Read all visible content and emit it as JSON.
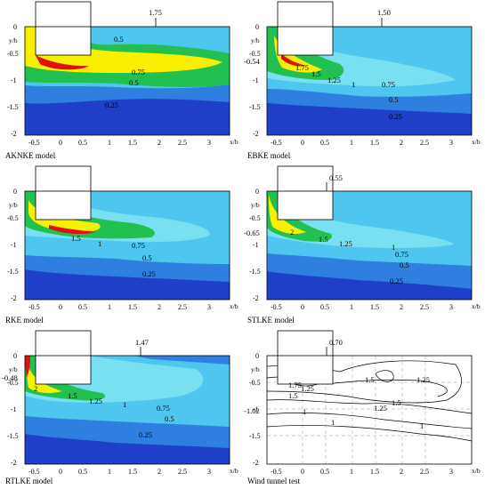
{
  "panels": [
    {
      "caption": "AKNKE model",
      "peak": "1.75",
      "contours": [
        "0.5",
        "0.75",
        "0.5",
        "0.25"
      ],
      "side_value": ""
    },
    {
      "caption": "EBKE model",
      "peak": "1.50",
      "contours": [
        "1.75",
        "1.5",
        "1.25",
        "1",
        "0.75",
        "0.5",
        "0.25"
      ],
      "side_value": "-0.54"
    },
    {
      "caption": "RKE model",
      "peak": "",
      "contours": [
        "1.5",
        "1",
        "0.75",
        "0.5",
        "0.25"
      ],
      "side_value": ""
    },
    {
      "caption": "STLKE model",
      "peak": "0.55",
      "contours": [
        "2",
        "1.5",
        "1.25",
        "1",
        "0.75",
        "0.5",
        "0.25"
      ],
      "side_value": "-0.65"
    },
    {
      "caption": "RTLKE model",
      "peak": "1.47",
      "contours": [
        "2",
        "1.5",
        "1.25",
        "1",
        "0.75",
        "0.5",
        "0.25"
      ],
      "side_value": "-0.48"
    },
    {
      "caption": "Wind tunnel test",
      "peak": "0.70",
      "contours": [
        "1.75",
        "1.25",
        "1.25",
        "1.5",
        "1.5",
        "1.5",
        "1.25",
        "1",
        "1",
        "1"
      ],
      "side_value": "-1.02"
    }
  ],
  "axes": {
    "x_ticks": [
      "-0.5",
      "0",
      "0.5",
      "1",
      "1.5",
      "2",
      "2.5",
      "3"
    ],
    "y_ticks": [
      "0",
      "-0.5",
      "-1",
      "-1.5",
      "-2"
    ],
    "x_label": "x/b",
    "y_label": "y/b"
  },
  "colors": {
    "dark_blue": "#1f3fc8",
    "blue": "#2f7fe0",
    "light_blue": "#4fc6ef",
    "cyan": "#78e0f0",
    "green": "#22c050",
    "yellow": "#f8f000",
    "red": "#e01010"
  }
}
